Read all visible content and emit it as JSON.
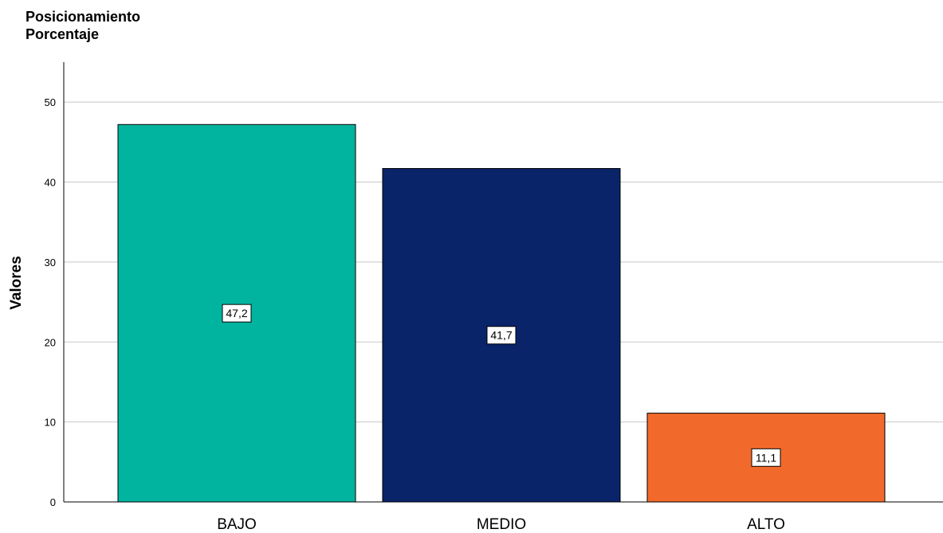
{
  "chart_data": {
    "type": "bar",
    "title_lines": [
      "Posicionamiento",
      "Porcentaje"
    ],
    "ylabel": "Valores",
    "xlabel": "",
    "categories": [
      "BAJO",
      "MEDIO",
      "ALTO"
    ],
    "values": [
      47.2,
      41.7,
      11.1
    ],
    "data_labels": [
      "47,2",
      "41,7",
      "11,1"
    ],
    "colors": [
      "#00b4a0",
      "#0a246a",
      "#f26a2b"
    ],
    "ylim": [
      0,
      55
    ],
    "yticks": [
      0,
      10,
      20,
      30,
      40,
      50
    ],
    "grid": true
  }
}
